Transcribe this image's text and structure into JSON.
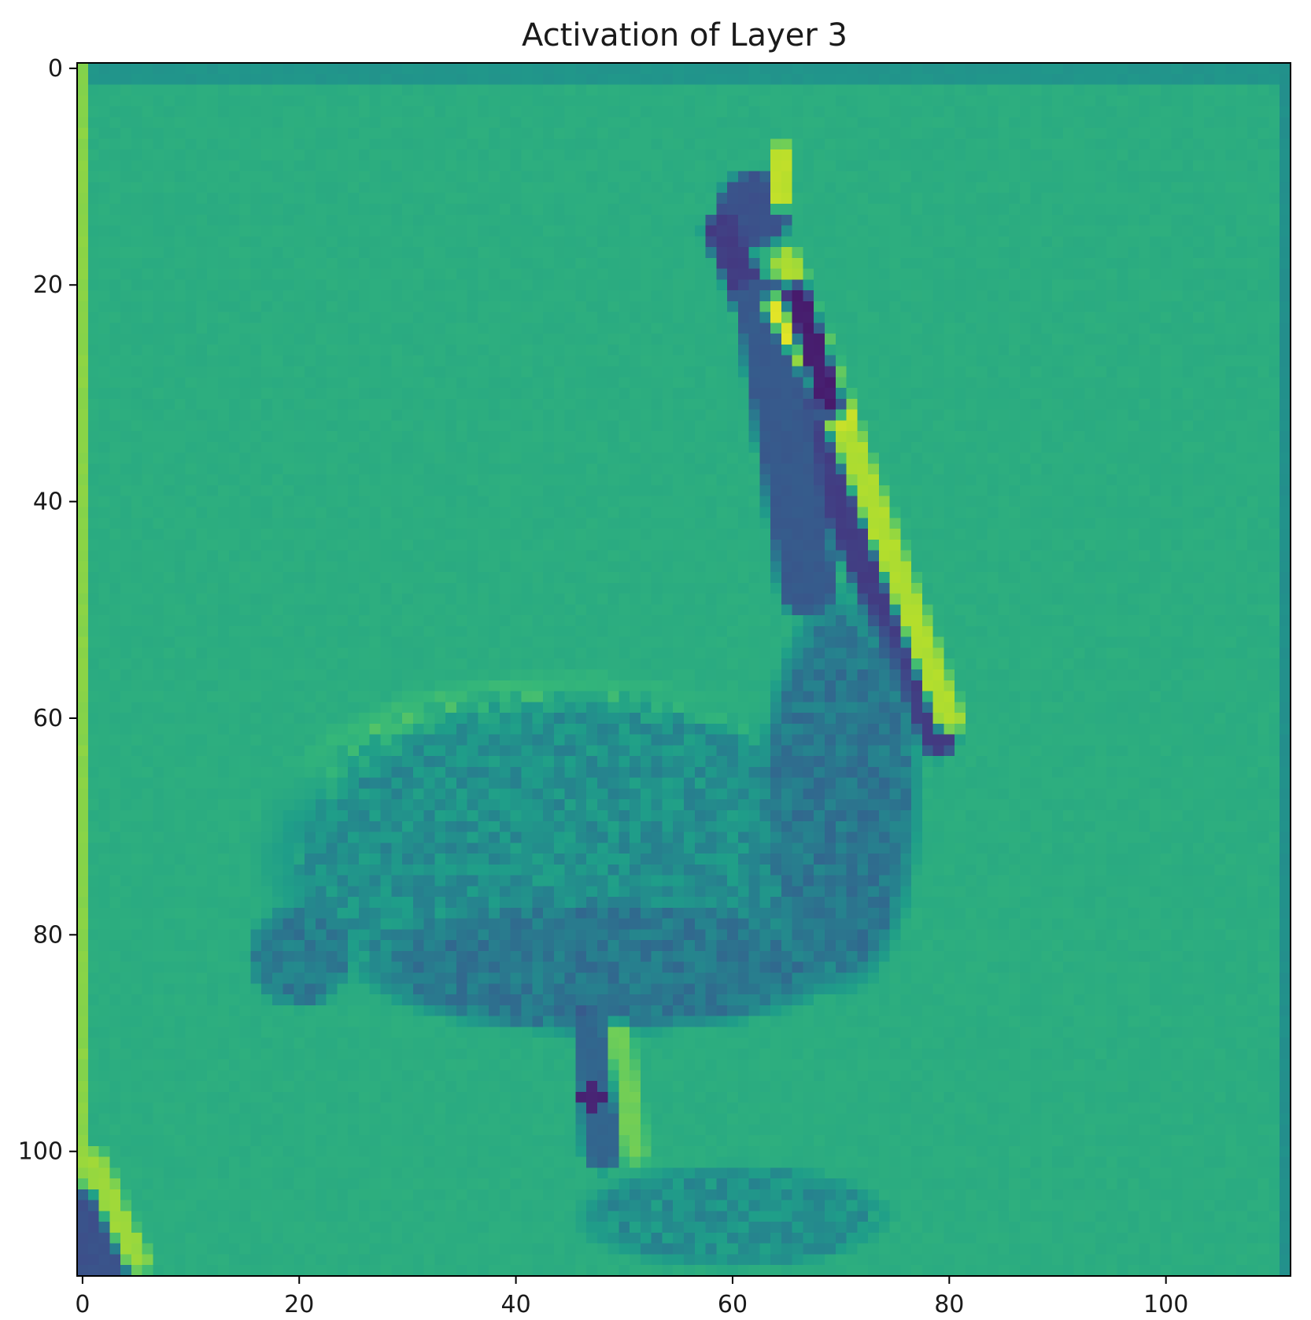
{
  "chart_data": {
    "type": "heatmap",
    "title": "Activation of Layer 3",
    "xlabel": "",
    "ylabel": "",
    "grid": false,
    "colormap": "viridis",
    "shape": [
      112,
      112
    ],
    "xlim": [
      -0.5,
      111.5
    ],
    "ylim": [
      111.5,
      -0.5
    ],
    "x_ticks": [
      0,
      20,
      40,
      60,
      80,
      100
    ],
    "y_ticks": [
      0,
      20,
      40,
      60,
      80,
      100
    ],
    "x_tick_labels": [
      "0",
      "20",
      "40",
      "60",
      "80",
      "100"
    ],
    "y_tick_labels": [
      "0",
      "20",
      "40",
      "60",
      "80",
      "100"
    ],
    "background_level": 0.62,
    "features": [
      {
        "name": "top-border",
        "kind": "rect",
        "cols": [
          0,
          111
        ],
        "rows": [
          0,
          1
        ],
        "value": 0.52
      },
      {
        "name": "left-border",
        "kind": "rect",
        "cols": [
          0,
          0
        ],
        "rows": [
          0,
          111
        ],
        "value": 0.82
      },
      {
        "name": "right-border",
        "kind": "rect",
        "cols": [
          111,
          111
        ],
        "rows": [
          0,
          111
        ],
        "value": 0.5
      },
      {
        "name": "head-dark",
        "kind": "ellipse",
        "cx": 62,
        "cy": 13,
        "rx": 3,
        "ry": 3,
        "value": 0.25
      },
      {
        "name": "head-bright",
        "kind": "ellipse",
        "cx": 64.5,
        "cy": 10,
        "rx": 1,
        "ry": 3,
        "value": 0.9
      },
      {
        "name": "bill-dark",
        "kind": "segment",
        "p1": [
          59,
          15
        ],
        "p2": [
          79,
          62
        ],
        "width": 1.2,
        "value": 0.18
      },
      {
        "name": "bill-bright",
        "kind": "segment",
        "p1": [
          65,
          18
        ],
        "p2": [
          80,
          60
        ],
        "width": 0.9,
        "value": 0.88
      },
      {
        "name": "neck-dark",
        "kind": "segment",
        "p1": [
          63,
          22
        ],
        "p2": [
          67,
          48
        ],
        "width": 2.2,
        "value": 0.28
      },
      {
        "name": "neck-bright",
        "kind": "segment",
        "p1": [
          64,
          22
        ],
        "p2": [
          70,
          32
        ],
        "width": 0.7,
        "value": 0.95
      },
      {
        "name": "neck-dark-2",
        "kind": "segment",
        "p1": [
          66,
          21
        ],
        "p2": [
          69,
          31
        ],
        "width": 0.8,
        "value": 0.08
      },
      {
        "name": "body-bright",
        "kind": "ellipse",
        "cx": 44,
        "cy": 67,
        "rx": 20,
        "ry": 9,
        "value": 0.74
      },
      {
        "name": "body-mid",
        "kind": "ellipse",
        "cx": 46,
        "cy": 73,
        "rx": 24,
        "ry": 13,
        "value": 0.5
      },
      {
        "name": "underside-dark",
        "kind": "ellipse",
        "cx": 48,
        "cy": 83,
        "rx": 18,
        "ry": 5,
        "value": 0.4
      },
      {
        "name": "back-dark",
        "kind": "ellipse",
        "cx": 70,
        "cy": 67,
        "rx": 6,
        "ry": 15,
        "value": 0.4
      },
      {
        "name": "tail-dark",
        "kind": "ellipse",
        "cx": 20,
        "cy": 82,
        "rx": 4,
        "ry": 4,
        "value": 0.42
      },
      {
        "name": "leg-left",
        "kind": "segment",
        "p1": [
          47,
          88
        ],
        "p2": [
          48,
          100
        ],
        "width": 1.3,
        "value": 0.32
      },
      {
        "name": "leg-dark-spot",
        "kind": "ellipse",
        "cx": 47,
        "cy": 95,
        "rx": 1,
        "ry": 1,
        "value": 0.1
      },
      {
        "name": "leg-right-bright",
        "kind": "segment",
        "p1": [
          49.5,
          89
        ],
        "p2": [
          51,
          100
        ],
        "width": 0.7,
        "value": 0.78
      },
      {
        "name": "rock-dark",
        "kind": "ellipse",
        "cx": 60,
        "cy": 106,
        "rx": 12,
        "ry": 4,
        "value": 0.5
      },
      {
        "name": "corner-dark",
        "kind": "ellipse",
        "cx": 1,
        "cy": 109,
        "rx": 3.5,
        "ry": 5,
        "value": 0.25
      },
      {
        "name": "corner-bright",
        "kind": "segment",
        "p1": [
          1,
          101
        ],
        "p2": [
          5,
          110
        ],
        "width": 0.8,
        "value": 0.85
      }
    ]
  }
}
